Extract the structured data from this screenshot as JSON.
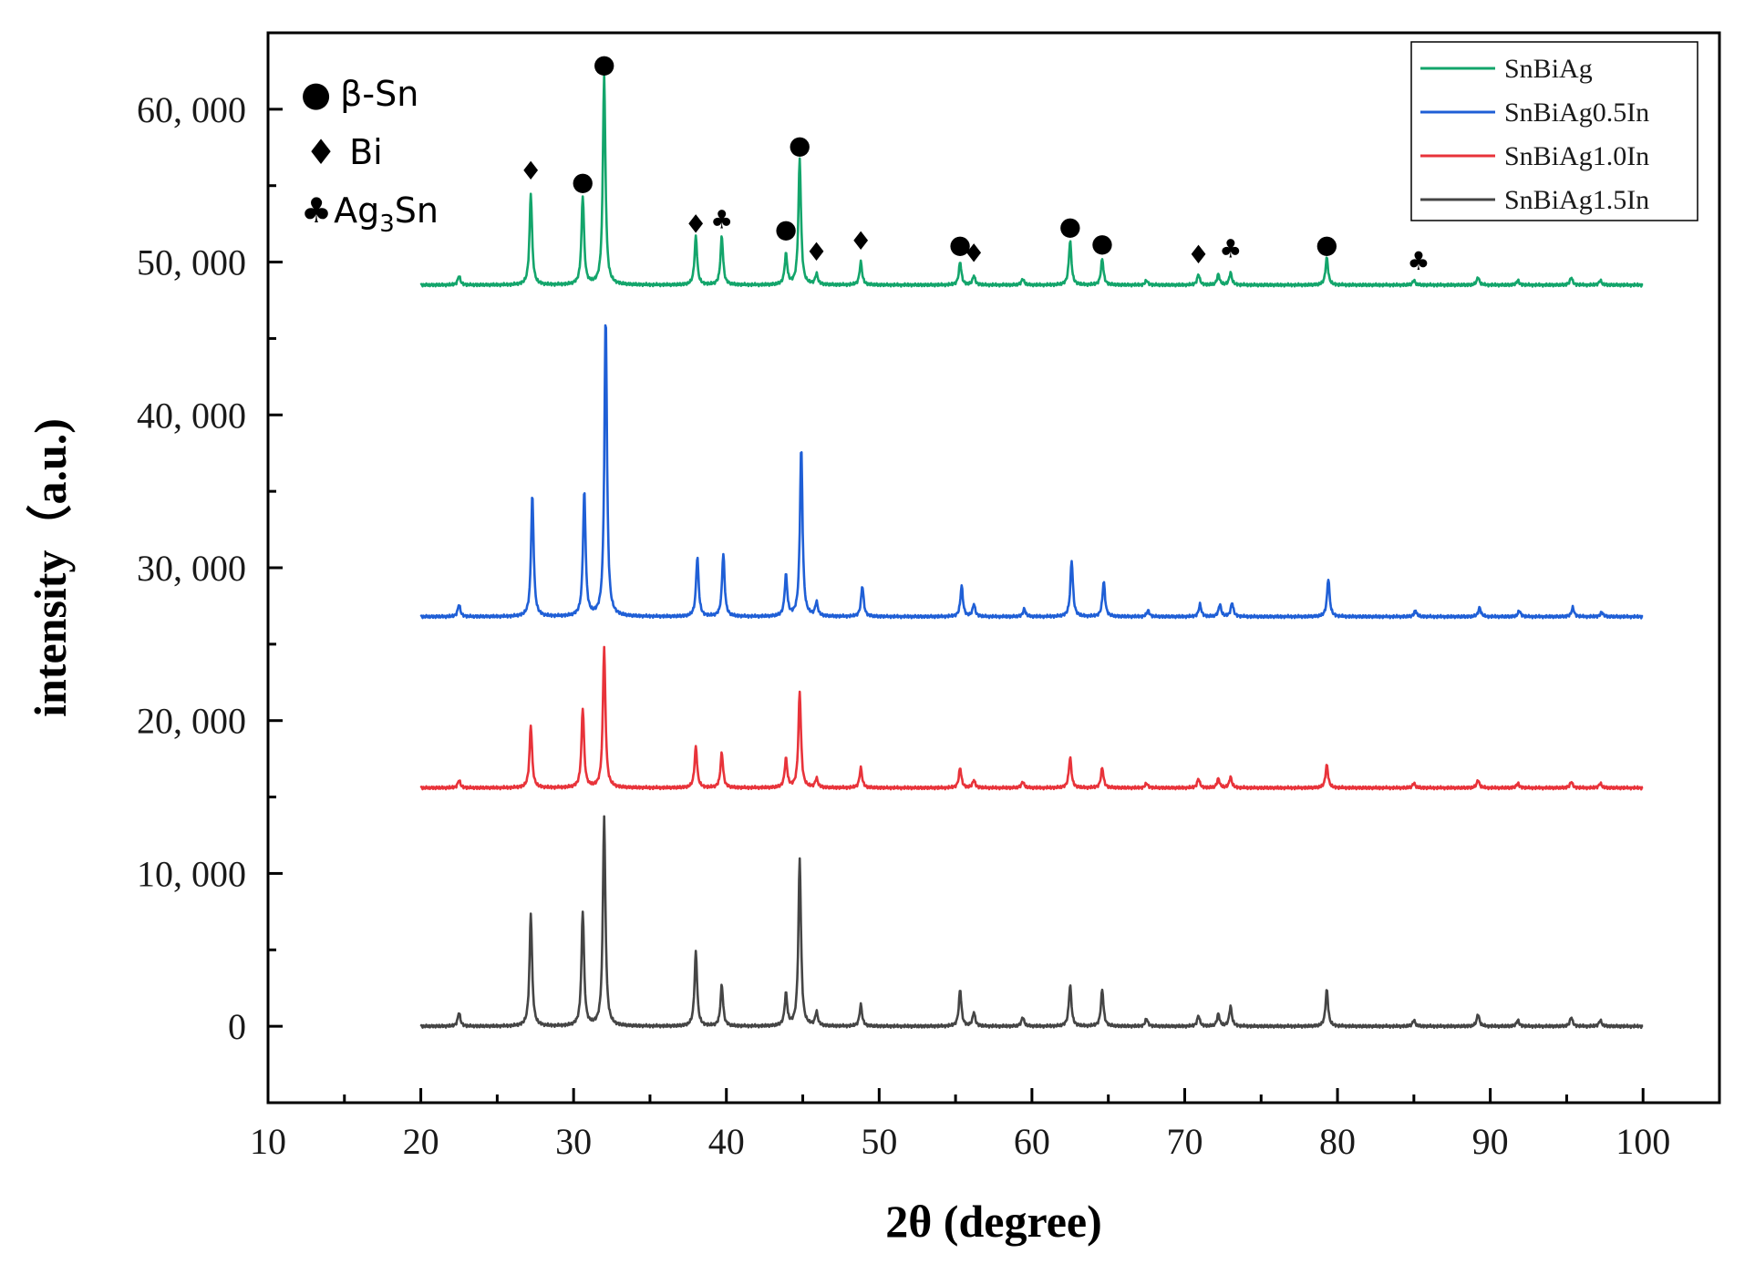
{
  "chart_data": {
    "type": "line",
    "xlabel": "2θ (degree)",
    "ylabel": "intensity（a.u.)",
    "xlim": [
      10,
      105
    ],
    "ylim": [
      -5000,
      65000
    ],
    "x_ticks": [
      10,
      20,
      30,
      40,
      50,
      60,
      70,
      80,
      90,
      100
    ],
    "y_ticks": [
      0,
      10000,
      20000,
      30000,
      40000,
      50000,
      60000
    ],
    "y_tick_labels": [
      "0",
      "10, 000",
      "20, 000",
      "30, 000",
      "40, 000",
      "50, 000",
      "60, 000"
    ],
    "x_range": [
      20,
      100
    ],
    "legend_position": "top-right",
    "series": [
      {
        "name": "SnBiAg",
        "color": "#13a56b",
        "baseline": 48500,
        "peaks": [
          [
            22.5,
            600
          ],
          [
            27.2,
            6000
          ],
          [
            30.6,
            5800
          ],
          [
            32.0,
            13800
          ],
          [
            38.0,
            3200
          ],
          [
            39.7,
            3200
          ],
          [
            43.9,
            2000
          ],
          [
            44.8,
            8300
          ],
          [
            45.9,
            700
          ],
          [
            48.8,
            1500
          ],
          [
            55.3,
            1500
          ],
          [
            56.2,
            600
          ],
          [
            59.4,
            400
          ],
          [
            62.5,
            2900
          ],
          [
            64.6,
            1700
          ],
          [
            67.5,
            300
          ],
          [
            70.9,
            700
          ],
          [
            72.2,
            700
          ],
          [
            73.0,
            800
          ],
          [
            79.3,
            1800
          ],
          [
            85.0,
            300
          ],
          [
            89.2,
            500
          ],
          [
            91.8,
            300
          ],
          [
            95.3,
            500
          ],
          [
            97.2,
            300
          ]
        ]
      },
      {
        "name": "SnBiAg0.5In",
        "color": "#1f5fd6",
        "baseline": 26800,
        "peaks": [
          [
            22.5,
            800
          ],
          [
            27.3,
            8000
          ],
          [
            30.7,
            8200
          ],
          [
            32.1,
            19700
          ],
          [
            38.1,
            3900
          ],
          [
            39.8,
            4100
          ],
          [
            43.9,
            2700
          ],
          [
            44.9,
            11100
          ],
          [
            45.9,
            900
          ],
          [
            48.9,
            2000
          ],
          [
            55.4,
            2000
          ],
          [
            56.2,
            800
          ],
          [
            59.5,
            500
          ],
          [
            62.6,
            3700
          ],
          [
            64.7,
            2300
          ],
          [
            67.6,
            400
          ],
          [
            71.0,
            800
          ],
          [
            72.3,
            800
          ],
          [
            73.1,
            900
          ],
          [
            79.4,
            2500
          ],
          [
            85.1,
            400
          ],
          [
            89.3,
            600
          ],
          [
            91.9,
            400
          ],
          [
            95.4,
            600
          ],
          [
            97.3,
            300
          ]
        ]
      },
      {
        "name": "SnBiAg1.0In",
        "color": "#e8333a",
        "baseline": 15600,
        "peaks": [
          [
            22.5,
            500
          ],
          [
            27.2,
            4100
          ],
          [
            30.6,
            5200
          ],
          [
            32.0,
            9200
          ],
          [
            38.0,
            2700
          ],
          [
            39.7,
            2300
          ],
          [
            43.9,
            1900
          ],
          [
            44.8,
            6300
          ],
          [
            45.9,
            600
          ],
          [
            48.8,
            1300
          ],
          [
            55.3,
            1300
          ],
          [
            56.2,
            500
          ],
          [
            59.4,
            400
          ],
          [
            62.5,
            2000
          ],
          [
            64.6,
            1300
          ],
          [
            67.5,
            300
          ],
          [
            70.9,
            600
          ],
          [
            72.2,
            600
          ],
          [
            73.0,
            700
          ],
          [
            79.3,
            1500
          ],
          [
            85.0,
            300
          ],
          [
            89.2,
            500
          ],
          [
            91.8,
            300
          ],
          [
            95.3,
            400
          ],
          [
            97.2,
            300
          ]
        ]
      },
      {
        "name": "SnBiAg1.5In",
        "color": "#454545",
        "baseline": 0,
        "peaks": [
          [
            22.5,
            900
          ],
          [
            27.2,
            7400
          ],
          [
            30.6,
            7500
          ],
          [
            32.0,
            13700
          ],
          [
            38.0,
            4900
          ],
          [
            39.7,
            2700
          ],
          [
            43.9,
            2100
          ],
          [
            44.8,
            11000
          ],
          [
            45.9,
            900
          ],
          [
            48.8,
            1400
          ],
          [
            55.3,
            2400
          ],
          [
            56.2,
            900
          ],
          [
            59.4,
            600
          ],
          [
            62.5,
            2700
          ],
          [
            64.6,
            2400
          ],
          [
            67.5,
            500
          ],
          [
            70.9,
            700
          ],
          [
            72.2,
            800
          ],
          [
            73.0,
            1300
          ],
          [
            79.3,
            2400
          ],
          [
            85.0,
            400
          ],
          [
            89.2,
            800
          ],
          [
            91.8,
            400
          ],
          [
            95.3,
            600
          ],
          [
            97.2,
            400
          ]
        ]
      }
    ],
    "phase_legend": [
      {
        "symbol": "●",
        "label": "β-Sn"
      },
      {
        "symbol": "♦",
        "label": "Bi"
      },
      {
        "symbol": "♣",
        "label": "Ag",
        "sub": "3",
        "suffix": "Sn"
      }
    ],
    "peak_markers": [
      {
        "x": 27.2,
        "y": 56000,
        "symbol": "♦"
      },
      {
        "x": 30.6,
        "y": 55300,
        "symbol": "●"
      },
      {
        "x": 32.0,
        "y": 63000,
        "symbol": "●"
      },
      {
        "x": 38.0,
        "y": 52500,
        "symbol": "♦"
      },
      {
        "x": 39.7,
        "y": 52800,
        "symbol": "♣"
      },
      {
        "x": 43.9,
        "y": 52200,
        "symbol": "●"
      },
      {
        "x": 44.8,
        "y": 57700,
        "symbol": "●"
      },
      {
        "x": 45.9,
        "y": 50700,
        "symbol": "♦"
      },
      {
        "x": 48.8,
        "y": 51400,
        "symbol": "♦"
      },
      {
        "x": 55.3,
        "y": 51200,
        "symbol": "●"
      },
      {
        "x": 56.2,
        "y": 50600,
        "symbol": "♦"
      },
      {
        "x": 62.5,
        "y": 52400,
        "symbol": "●"
      },
      {
        "x": 64.6,
        "y": 51300,
        "symbol": "●"
      },
      {
        "x": 70.9,
        "y": 50500,
        "symbol": "♦"
      },
      {
        "x": 73.0,
        "y": 50900,
        "symbol": "♣"
      },
      {
        "x": 79.3,
        "y": 51200,
        "symbol": "●"
      },
      {
        "x": 85.3,
        "y": 50100,
        "symbol": "♣"
      }
    ]
  }
}
